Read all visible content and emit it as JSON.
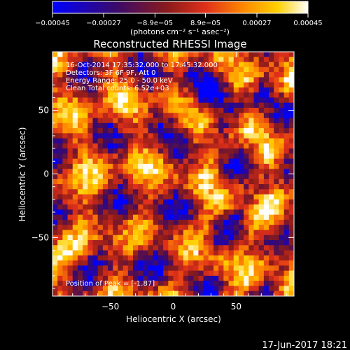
{
  "chart_data": {
    "type": "heatmap",
    "title": "Reconstructed RHESSI Image",
    "xlabel": "Heliocentric X (arcsec)",
    "ylabel": "Heliocentric Y (arcsec)",
    "xlim": [
      -96,
      96
    ],
    "ylim": [
      -96,
      96
    ],
    "x_ticks": [
      -50,
      0,
      50
    ],
    "y_ticks": [
      -50,
      0,
      50
    ],
    "x_tick_labels": [
      "−50",
      "0",
      "50"
    ],
    "y_tick_labels": [
      "−50",
      "0",
      "50"
    ],
    "colorbar": {
      "range": [
        -0.00045,
        0.00045
      ],
      "tick_values": [
        -0.00045,
        -0.00027,
        -8.9e-05,
        8.9e-05,
        0.00027,
        0.00045
      ],
      "tick_labels": [
        "−0.00045",
        "−0.00027",
        "−8.9e−05",
        "8.9e−05",
        "0.00027",
        "0.00045"
      ],
      "unit_label": "(photons cm⁻² s⁻¹ asec⁻²)"
    },
    "annotations": [
      "16-Oct-2014 17:35:32.000 to 17:45:32.000",
      "Detectors: 3F 6F 9F, Att 0",
      "Energy Range: 25.0 - 50.0 keV",
      "Clean    Total counts: 6.52e+03"
    ],
    "peak_label": "Position of Peak = [-1.87]",
    "footer_date": "17-Jun-2017 18:21",
    "grid": false,
    "colors": {
      "background": "#000000",
      "colormap": [
        "#0000ff",
        "#3a0a6a",
        "#8a1b1b",
        "#e0301a",
        "#ff8a00",
        "#ffd000",
        "#ffffff"
      ]
    }
  }
}
